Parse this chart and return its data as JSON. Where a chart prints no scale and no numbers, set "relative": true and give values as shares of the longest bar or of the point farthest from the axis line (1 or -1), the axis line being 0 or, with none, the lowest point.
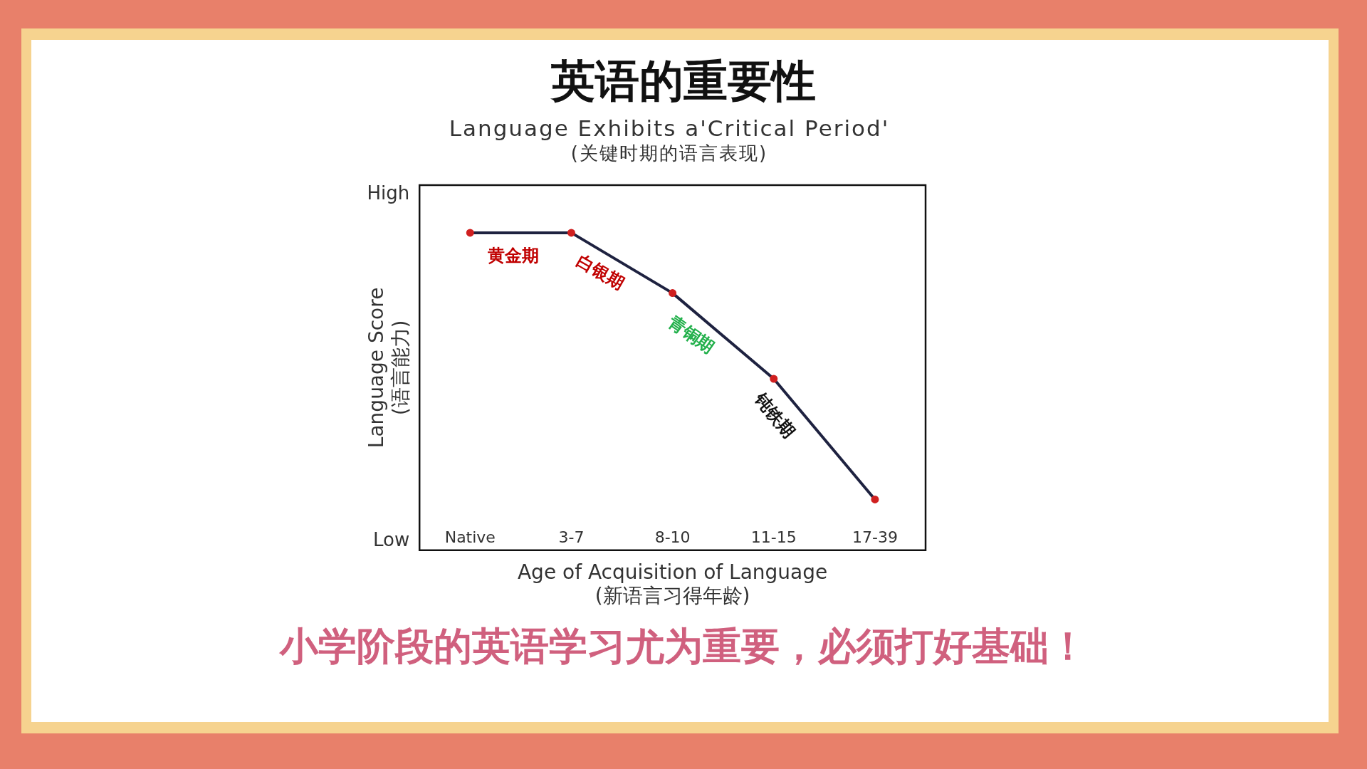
{
  "chart_data": {
    "type": "line",
    "title": "英语的重要性",
    "subtitle": "Language Exhibits a'Critical Period'\n(关键时期的语言表现)",
    "xlabel": "Age of Acquisition of Language\n(新语言习得年龄)",
    "ylabel": "Language Score\n(语言能力)",
    "categories": [
      "Native",
      "3-7",
      "8-10",
      "11-15",
      "17-39"
    ],
    "series": [
      {
        "color": "#1e2240",
        "values": [
          1,
          1,
          0.81,
          0.54,
          0.16
        ]
      }
    ],
    "relative": true,
    "marker": "circle",
    "line_style": "solid",
    "grid": false,
    "legend": false,
    "annotations": [
      "High",
      "Low",
      "小学阶段的英语学习尤为重要，必须打好基础！",
      "黄金期",
      "白银期",
      "青铜期",
      "钝铁期"
    ]
  }
}
